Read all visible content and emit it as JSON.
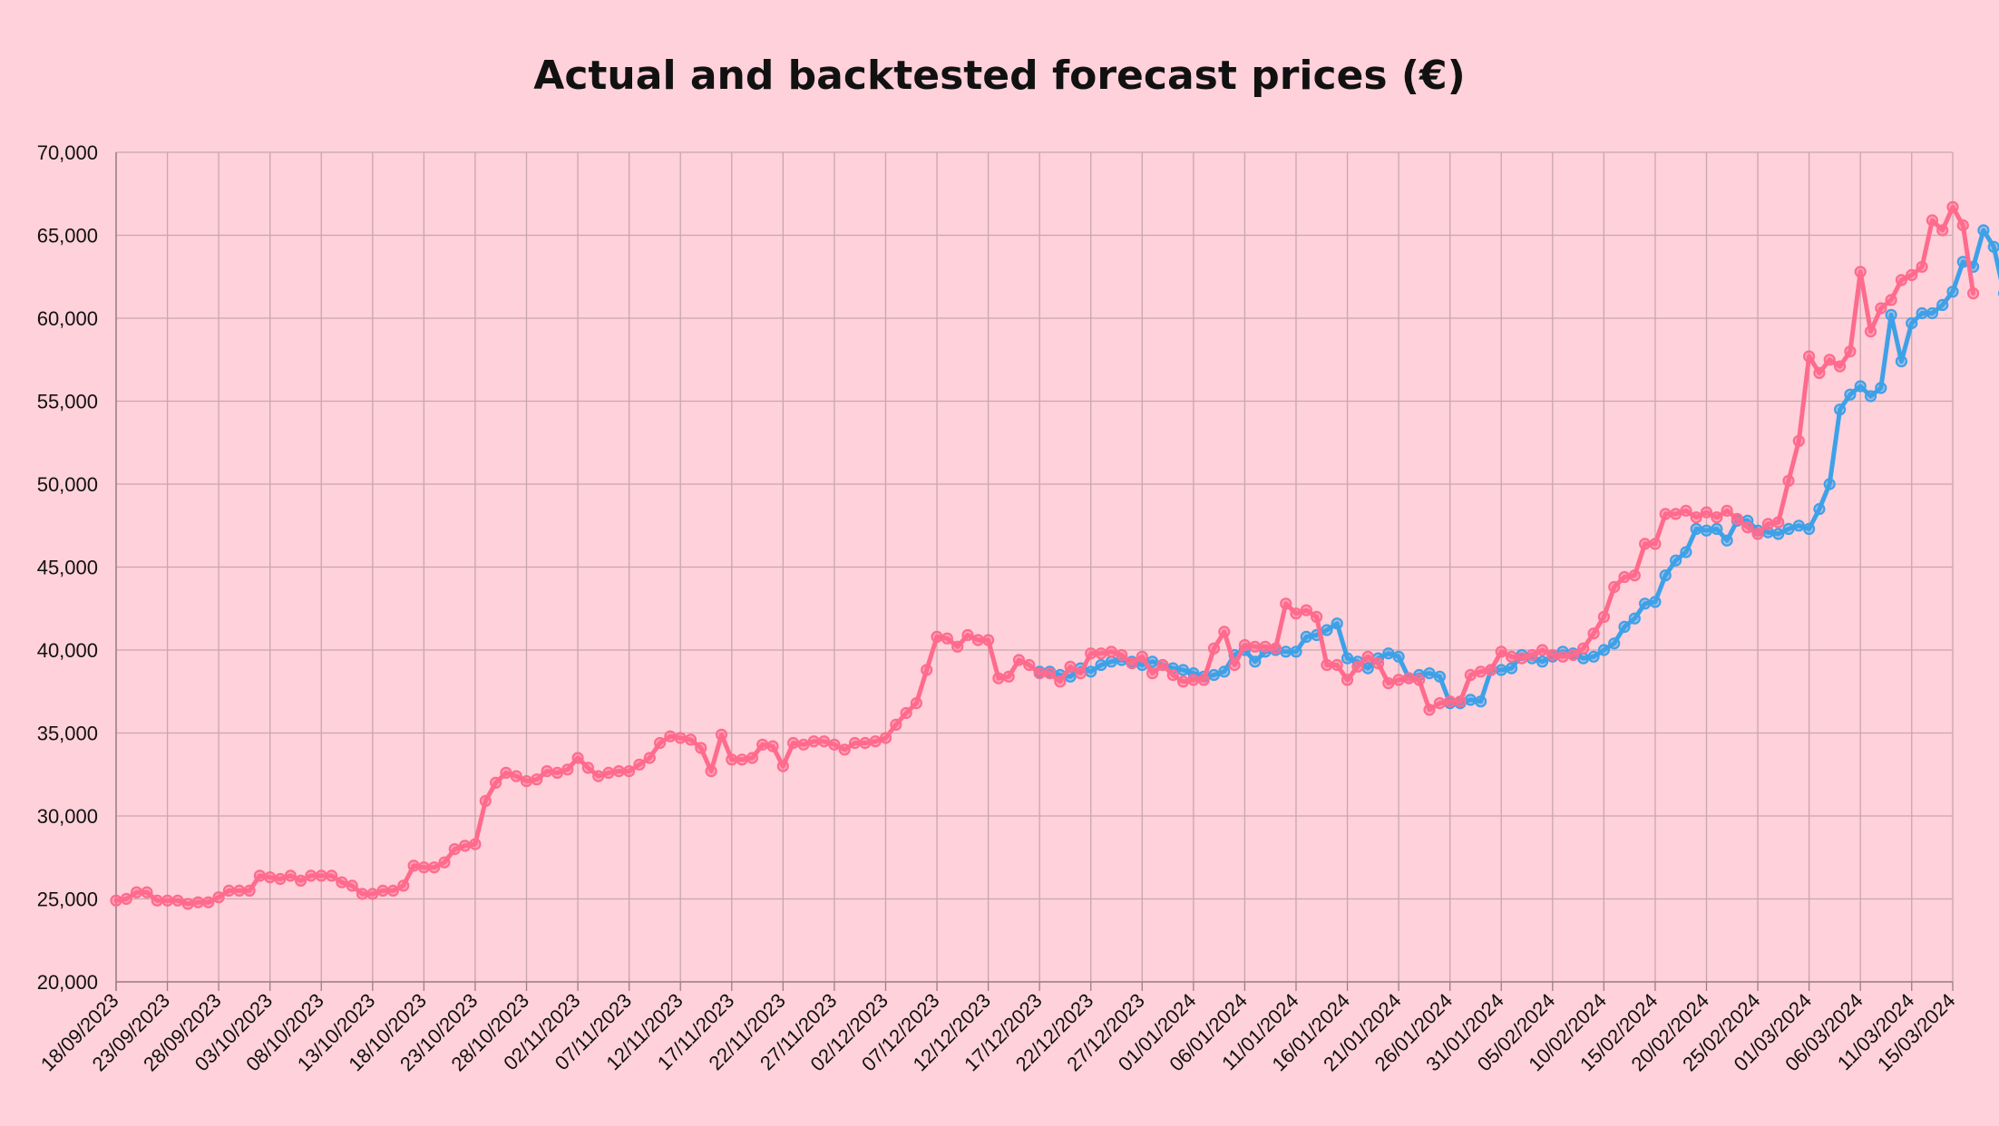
{
  "chart_data": {
    "type": "line",
    "title": "Actual and backtested forecast prices (€)",
    "xlabel": "",
    "ylabel": "",
    "ylim": [
      20000,
      70000
    ],
    "y_ticks": [
      "20,000",
      "25,000",
      "30,000",
      "35,000",
      "40,000",
      "45,000",
      "50,000",
      "55,000",
      "60,000",
      "65,000",
      "70,000"
    ],
    "x_start": "2023-09-18",
    "x_end": "2024-03-15",
    "x_tick_labels": [
      "18/09/2023",
      "23/09/2023",
      "28/09/2023",
      "03/10/2023",
      "08/10/2023",
      "13/10/2023",
      "18/10/2023",
      "23/10/2023",
      "28/10/2023",
      "02/11/2023",
      "07/11/2023",
      "12/11/2023",
      "17/11/2023",
      "22/11/2023",
      "27/11/2023",
      "02/12/2023",
      "07/12/2023",
      "12/12/2023",
      "17/12/2023",
      "22/12/2023",
      "27/12/2023",
      "01/01/2024",
      "06/01/2024",
      "11/01/2024",
      "16/01/2024",
      "21/01/2024",
      "26/01/2024",
      "31/01/2024",
      "05/02/2024",
      "10/02/2024",
      "15/02/2024",
      "20/02/2024",
      "25/02/2024",
      "01/03/2024",
      "06/03/2024",
      "11/03/2024",
      "15/03/2024"
    ],
    "grid": true,
    "legend": "none",
    "series": [
      {
        "color": "#3ea1e8",
        "start": "2023-12-17",
        "values": [
          38700,
          38700,
          38500,
          38400,
          38900,
          38700,
          39100,
          39300,
          39400,
          39300,
          39100,
          39300,
          39100,
          38900,
          38800,
          38600,
          38400,
          38500,
          38700,
          39700,
          40000,
          39300,
          39900,
          40000,
          39900,
          39900,
          40800,
          40900,
          41200,
          41600,
          39500,
          39300,
          38900,
          39500,
          39800,
          39600,
          38300,
          38500,
          38600,
          38400,
          36800,
          36800,
          37000,
          36900,
          38800,
          38800,
          38900,
          39700,
          39500,
          39300,
          39600,
          39900,
          39800,
          39500,
          39600,
          40000,
          40400,
          41400,
          41900,
          42800,
          42900,
          44500,
          45400,
          45900,
          47300,
          47200,
          47300,
          46600,
          47800,
          47800,
          47200,
          47100,
          47000,
          47300,
          47500,
          47300,
          48500,
          50000,
          54500,
          55400,
          55900,
          55300,
          55800,
          60200,
          57400,
          59700,
          60300,
          60300,
          60800,
          61600,
          63400,
          63100,
          65300,
          64300,
          61500
        ]
      },
      {
        "color": "#ff6b8d",
        "start": "2023-09-18",
        "values": [
          24900,
          25000,
          25400,
          25400,
          24900,
          24900,
          24900,
          24700,
          24800,
          24800,
          25100,
          25500,
          25500,
          25500,
          26400,
          26300,
          26200,
          26400,
          26100,
          26400,
          26400,
          26400,
          26000,
          25800,
          25300,
          25300,
          25500,
          25500,
          25800,
          27000,
          26900,
          26900,
          27200,
          28000,
          28200,
          28300,
          30900,
          32000,
          32600,
          32400,
          32100,
          32200,
          32700,
          32600,
          32800,
          33500,
          32900,
          32400,
          32600,
          32700,
          32700,
          33100,
          33500,
          34400,
          34800,
          34700,
          34600,
          34100,
          32700,
          34900,
          33400,
          33400,
          33500,
          34300,
          34200,
          33000,
          34400,
          34300,
          34500,
          34500,
          34300,
          34000,
          34400,
          34400,
          34500,
          34700,
          35500,
          36200,
          36800,
          38800,
          40800,
          40700,
          40200,
          40900,
          40600,
          40600,
          38300,
          38400,
          39400,
          39100,
          38600,
          38600,
          38100,
          39000,
          38600,
          39800,
          39800,
          39900,
          39700,
          39200,
          39600,
          38600,
          39100,
          38500,
          38100,
          38200,
          38200,
          40100,
          41100,
          39100,
          40300,
          40200,
          40200,
          40100,
          42800,
          42200,
          42400,
          42000,
          39100,
          39100,
          38200,
          39000,
          39600,
          39200,
          38000,
          38200,
          38300,
          38200,
          36400,
          36800,
          36900,
          36900,
          38500,
          38700,
          38800,
          39900,
          39600,
          39500,
          39700,
          40000,
          39700,
          39600,
          39700,
          40100,
          41000,
          42000,
          43800,
          44400,
          44500,
          46400,
          46400,
          48200,
          48200,
          48400,
          48000,
          48300,
          48000,
          48400,
          47900,
          47400,
          47000,
          47600,
          47700,
          50200,
          52600,
          57700,
          56700,
          57500,
          57100,
          58000,
          62800,
          59200,
          60600,
          61100,
          62300,
          62600,
          63100,
          65900,
          65300,
          66700,
          65600,
          61500
        ]
      }
    ]
  }
}
